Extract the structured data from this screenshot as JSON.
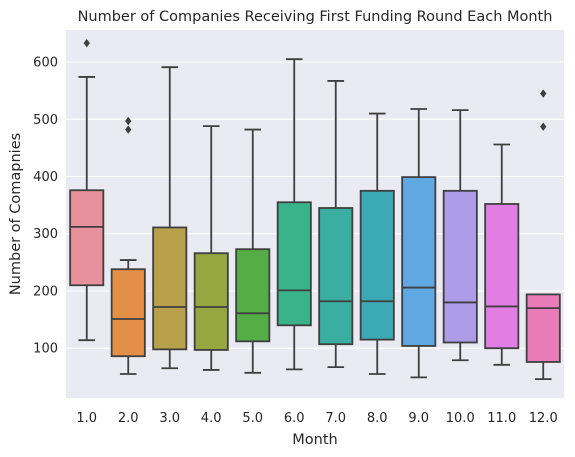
{
  "chart_data": {
    "type": "box",
    "title": "Number of Companies Receiving First Funding Round Each Month",
    "xlabel": "Month",
    "ylabel": "Number of Comapnies",
    "ylim": [
      13,
      656
    ],
    "yticks": [
      100,
      200,
      300,
      400,
      500,
      600
    ],
    "grid": true,
    "boxes": [
      {
        "label": "1.0",
        "color": "#e8909b",
        "whislo": 114,
        "q1": 210,
        "med": 312,
        "q3": 376,
        "whishi": 574,
        "fliers": [
          633
        ]
      },
      {
        "label": "2.0",
        "color": "#e48f47",
        "whislo": 55,
        "q1": 86,
        "med": 151,
        "q3": 238,
        "whishi": 254,
        "fliers": [
          482,
          497
        ]
      },
      {
        "label": "3.0",
        "color": "#b9a04a",
        "whislo": 65,
        "q1": 98,
        "med": 172,
        "q3": 311,
        "whishi": 591,
        "fliers": []
      },
      {
        "label": "4.0",
        "color": "#96a641",
        "whislo": 62,
        "q1": 97,
        "med": 172,
        "q3": 266,
        "whishi": 488,
        "fliers": []
      },
      {
        "label": "5.0",
        "color": "#55ad45",
        "whislo": 57,
        "q1": 112,
        "med": 161,
        "q3": 273,
        "whishi": 482,
        "fliers": []
      },
      {
        "label": "6.0",
        "color": "#3ab38a",
        "whislo": 63,
        "q1": 140,
        "med": 201,
        "q3": 355,
        "whishi": 605,
        "fliers": []
      },
      {
        "label": "7.0",
        "color": "#3aaea0",
        "whislo": 67,
        "q1": 107,
        "med": 182,
        "q3": 345,
        "whishi": 567,
        "fliers": []
      },
      {
        "label": "8.0",
        "color": "#3caab4",
        "whislo": 55,
        "q1": 115,
        "med": 182,
        "q3": 375,
        "whishi": 510,
        "fliers": []
      },
      {
        "label": "9.0",
        "color": "#60a8e1",
        "whislo": 49,
        "q1": 104,
        "med": 206,
        "q3": 399,
        "whishi": 518,
        "fliers": []
      },
      {
        "label": "10.0",
        "color": "#ad9ce8",
        "whislo": 79,
        "q1": 110,
        "med": 180,
        "q3": 375,
        "whishi": 516,
        "fliers": []
      },
      {
        "label": "11.0",
        "color": "#e27ee3",
        "whislo": 71,
        "q1": 100,
        "med": 173,
        "q3": 352,
        "whishi": 456,
        "fliers": []
      },
      {
        "label": "12.0",
        "color": "#e87bb8",
        "whislo": 46,
        "q1": 76,
        "med": 170,
        "q3": 194,
        "whishi": 194,
        "fliers": [
          487,
          545
        ]
      }
    ],
    "colors": {
      "plot_background": "#eaeaf2",
      "grid": "#ffffff",
      "line": "#3f3f3f"
    }
  }
}
